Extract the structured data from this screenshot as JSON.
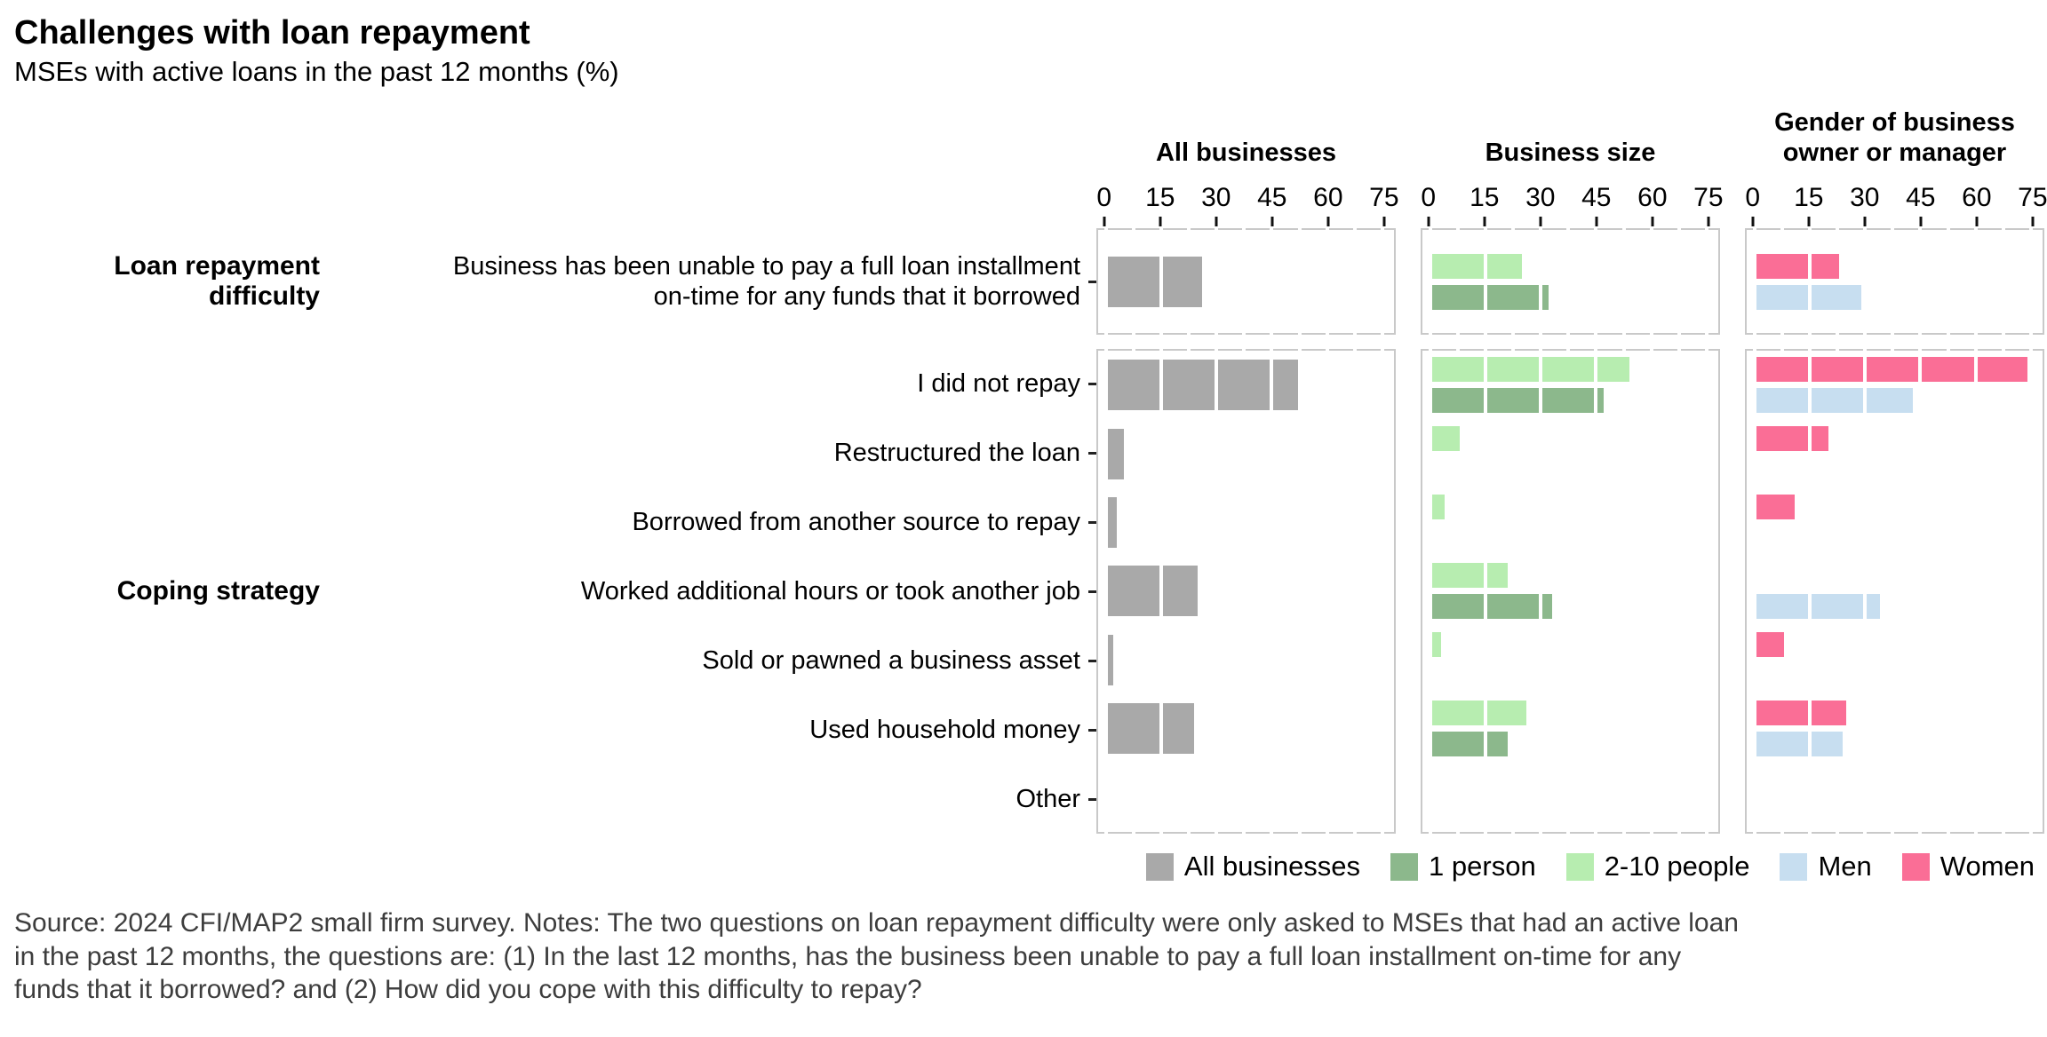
{
  "header": {
    "title": "Challenges with loan repayment",
    "subtitle": "MSEs with active loans in the past 12 months (%)"
  },
  "chart_data": {
    "type": "bar",
    "orientation": "horizontal",
    "unit": "%",
    "xlim": [
      0,
      75
    ],
    "x_ticks": [
      0,
      15,
      30,
      45,
      60,
      75
    ],
    "grid": "white vertical gridlines drawn over bars every 15 units, minor lines every 7.5 units dash the panel border",
    "panel_border_color": "#c9c9c9",
    "panels": [
      {
        "title": "All businesses",
        "series": [
          {
            "name": "All businesses",
            "color": "#a9a9a9",
            "single": true
          }
        ]
      },
      {
        "title": "Business size",
        "series": [
          {
            "name": "2-10 people",
            "color": "#b7edb0"
          },
          {
            "name": "1 person",
            "color": "#8cb88c"
          }
        ]
      },
      {
        "title": "Gender of business owner or manager",
        "series": [
          {
            "name": "Women",
            "color": "#fa6e96"
          },
          {
            "name": "Men",
            "color": "#c7def0"
          }
        ]
      }
    ],
    "facets": [
      {
        "label": "Loan repayment difficulty",
        "rows": [
          {
            "label": "Business has been unable to pay a full loan installment\non-time for any funds that it borrowed",
            "values": {
              "All businesses": 26,
              "1 person": 32,
              "2-10 people": 25,
              "Men": 29,
              "Women": 23
            }
          }
        ]
      },
      {
        "label": "Coping strategy",
        "rows": [
          {
            "label": "I did not repay",
            "values": {
              "All businesses": 52,
              "1 person": 47,
              "2-10 people": 54,
              "Men": 43,
              "Women": 74
            }
          },
          {
            "label": "Restructured the loan",
            "values": {
              "All businesses": 5,
              "1 person": 0,
              "2-10 people": 8,
              "Men": 0,
              "Women": 20
            }
          },
          {
            "label": "Borrowed from another source to repay",
            "values": {
              "All businesses": 3,
              "1 person": 0,
              "2-10 people": 4,
              "Men": 0,
              "Women": 11
            }
          },
          {
            "label": "Worked additional hours or took another job",
            "values": {
              "All businesses": 25,
              "1 person": 33,
              "2-10 people": 21,
              "Men": 34,
              "Women": 0
            }
          },
          {
            "label": "Sold or pawned a business asset",
            "values": {
              "All businesses": 2,
              "1 person": 0,
              "2-10 people": 3,
              "Men": 0,
              "Women": 8
            }
          },
          {
            "label": "Used household money",
            "values": {
              "All businesses": 24,
              "1 person": 21,
              "2-10 people": 26,
              "Men": 24,
              "Women": 25
            }
          },
          {
            "label": "Other",
            "values": {
              "All businesses": 0,
              "1 person": 0,
              "2-10 people": 0,
              "Men": 0,
              "Women": 0
            }
          }
        ]
      }
    ],
    "legend": {
      "position": "bottom-right",
      "items": [
        {
          "label": "All businesses",
          "color": "#a9a9a9"
        },
        {
          "label": "1 person",
          "color": "#8cb88c"
        },
        {
          "label": "2-10 people",
          "color": "#b7edb0"
        },
        {
          "label": "Men",
          "color": "#c7def0"
        },
        {
          "label": "Women",
          "color": "#fa6e96"
        }
      ]
    }
  },
  "footnote": "Source: 2024 CFI/MAP2 small firm survey. Notes: The two questions on loan repayment difficulty were only asked to MSEs that had an active loan\nin the past 12 months, the questions are: (1) In the last 12 months, has the business been unable to pay a full loan installment on-time for any\nfunds that it borrowed? and (2) How did you cope with this difficulty to repay?"
}
